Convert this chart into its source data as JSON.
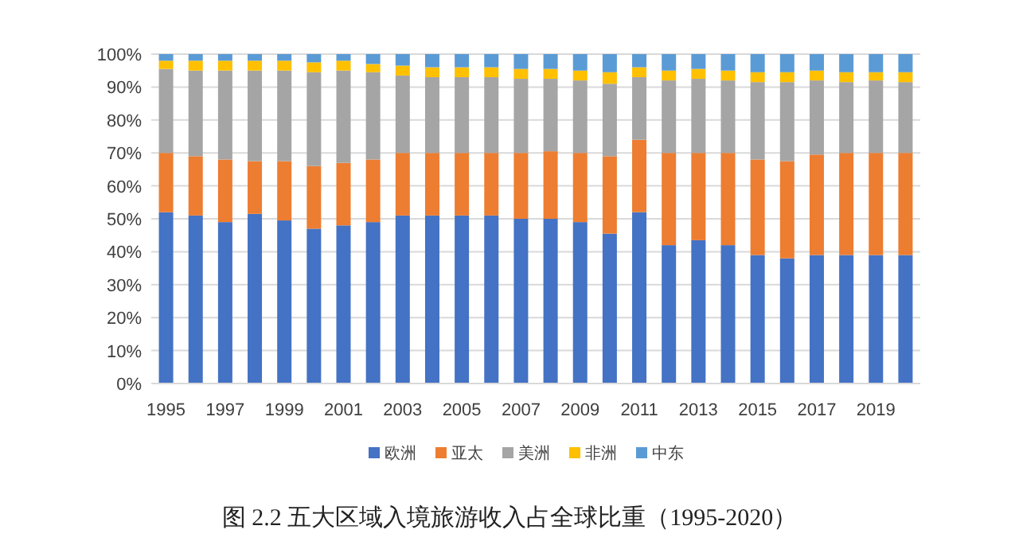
{
  "chart_data": {
    "type": "bar",
    "stacked": true,
    "categories": [
      "1995",
      null,
      "1997",
      null,
      "1999",
      null,
      "2001",
      null,
      "2003",
      null,
      "2005",
      null,
      "2007",
      null,
      "2009",
      null,
      "2011",
      null,
      "2013",
      null,
      "2015",
      null,
      "2017",
      null,
      "2019",
      null
    ],
    "series": [
      {
        "name": "欧洲",
        "color": "#4472c4",
        "values": [
          52,
          51,
          49,
          51.5,
          49.5,
          47,
          48,
          49,
          51,
          51,
          51,
          51,
          50,
          50,
          49,
          45.5,
          52,
          42,
          43.5,
          42,
          39,
          38,
          39,
          39,
          39,
          39
        ]
      },
      {
        "name": "亚太",
        "color": "#ed7d31",
        "values": [
          18,
          18,
          19,
          16,
          18,
          19,
          19,
          19,
          19,
          19,
          19,
          19,
          20,
          20.5,
          21,
          23.5,
          22,
          28,
          26.5,
          28,
          29,
          29.5,
          30.5,
          31,
          31,
          31
        ]
      },
      {
        "name": "美洲",
        "color": "#a5a5a5",
        "values": [
          25.5,
          26,
          27,
          27.5,
          27.5,
          28.5,
          28,
          26.5,
          23.5,
          23,
          23,
          23,
          22.5,
          22,
          22,
          22,
          19,
          22,
          22.5,
          22,
          23.5,
          24,
          22.5,
          21.5,
          22,
          21.5
        ]
      },
      {
        "name": "非洲",
        "color": "#ffc000",
        "values": [
          2.5,
          3,
          3,
          3,
          3,
          3,
          3,
          2.5,
          3,
          3,
          3,
          3,
          3,
          3,
          3,
          3.5,
          3,
          3,
          3,
          3,
          3,
          3,
          3,
          3,
          2.5,
          3
        ]
      },
      {
        "name": "中东",
        "color": "#5b9bd5",
        "values": [
          2,
          2,
          2,
          2,
          2,
          2.5,
          2,
          3,
          3.5,
          4,
          4,
          4,
          4.5,
          4.5,
          5,
          5.5,
          4,
          5,
          4.5,
          5,
          5.5,
          5.5,
          5,
          5.5,
          5.5,
          5.5
        ]
      }
    ],
    "ylim": [
      0,
      100
    ],
    "yticks": [
      {
        "value": 0,
        "label": "0%"
      },
      {
        "value": 10,
        "label": "10%"
      },
      {
        "value": 20,
        "label": "20%"
      },
      {
        "value": 30,
        "label": "30%"
      },
      {
        "value": 40,
        "label": "40%"
      },
      {
        "value": 50,
        "label": "50%"
      },
      {
        "value": 60,
        "label": "60%"
      },
      {
        "value": 70,
        "label": "70%"
      },
      {
        "value": 80,
        "label": "80%"
      },
      {
        "value": 90,
        "label": "90%"
      },
      {
        "value": 100,
        "label": "100%"
      }
    ],
    "grid": "y",
    "legend": "bottom",
    "annotations": [
      "图 2.2 五大区域入境旅游收入占全球比重（1995-2020）"
    ]
  }
}
